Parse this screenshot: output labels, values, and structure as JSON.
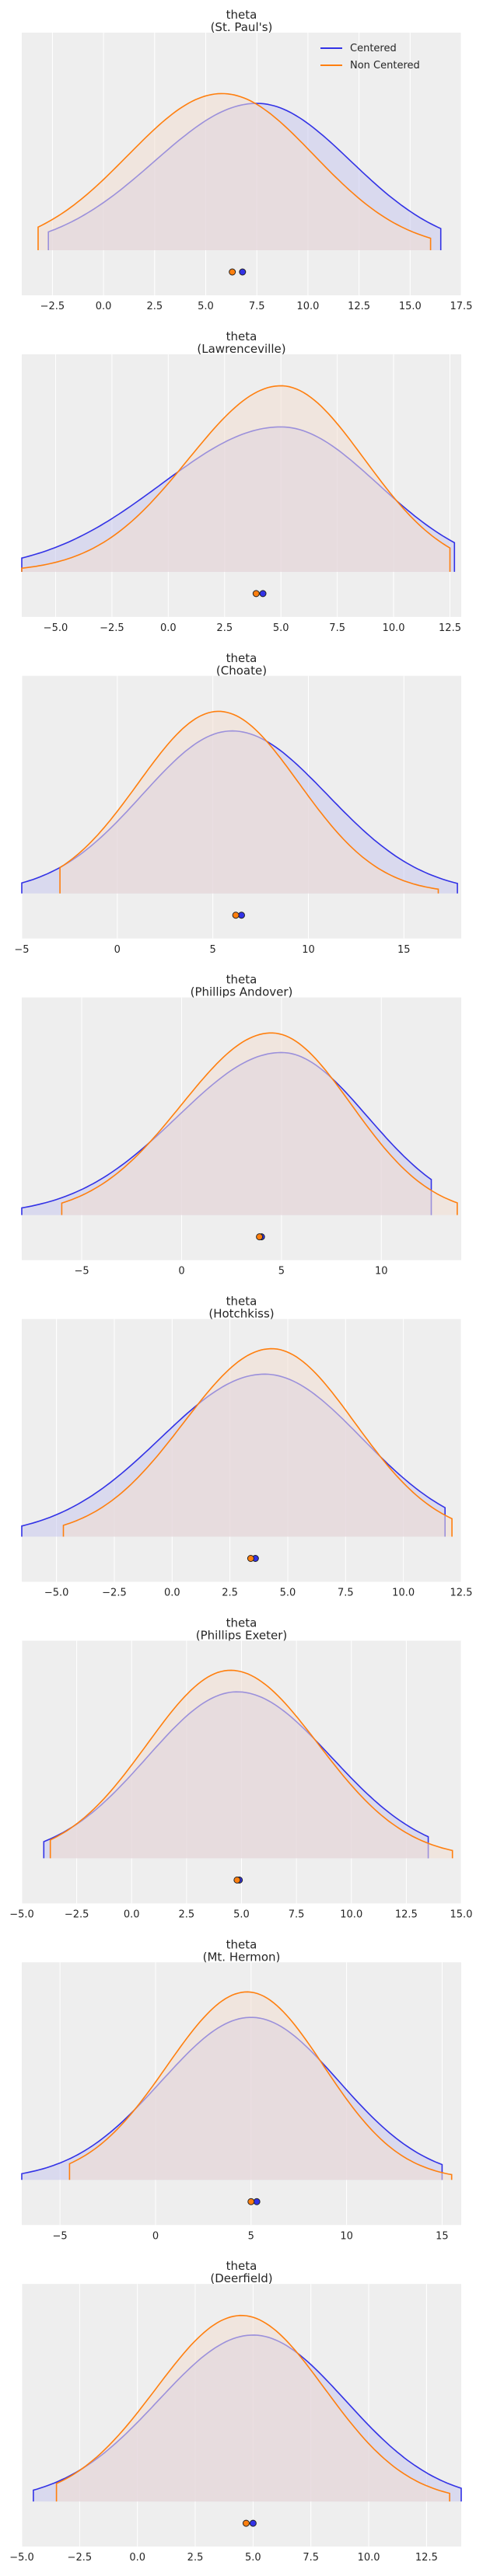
{
  "colors": {
    "centered": "#3232e6",
    "non_centered": "#ff7f0e",
    "panel_bg": "#eeeeee",
    "grid": "#ffffff",
    "centered_fill": "#c9c9ee",
    "non_centered_fill": "#f3ded1"
  },
  "chart_data": [
    {
      "type": "area",
      "title": "theta",
      "subtitle": "(St. Paul's)",
      "xlim": [
        -4.0,
        17.5
      ],
      "xticks": [
        -2.5,
        0.0,
        2.5,
        5.0,
        7.5,
        10.0,
        12.5,
        15.0,
        17.5
      ],
      "xtick_labels": [
        "−2.5",
        "0.0",
        "2.5",
        "5.0",
        "7.5",
        "10.0",
        "12.5",
        "15.0",
        "17.5"
      ],
      "grid": true,
      "legend": {
        "position": "top-right",
        "entries": [
          "Centered",
          "Non Centered"
        ]
      },
      "series": [
        {
          "name": "Centered",
          "mean": 6.8,
          "peak_x": 7.5,
          "range": [
            -2.7,
            16.5
          ],
          "sigma_left": 5.0,
          "sigma_right": 4.6,
          "peak": 0.75
        },
        {
          "name": "Non Centered",
          "mean": 6.3,
          "peak_x": 5.8,
          "range": [
            -3.2,
            16.0
          ],
          "sigma_left": 4.6,
          "sigma_right": 4.5,
          "peak": 0.8
        }
      ]
    },
    {
      "type": "area",
      "title": "theta",
      "subtitle": "(Lawrenceville)",
      "xlim": [
        -6.5,
        13.0
      ],
      "xticks": [
        -5.0,
        -2.5,
        0.0,
        2.5,
        5.0,
        7.5,
        10.0,
        12.5
      ],
      "xtick_labels": [
        "−5.0",
        "−2.5",
        "0.0",
        "2.5",
        "5.0",
        "7.5",
        "10.0",
        "12.5"
      ],
      "grid": true,
      "legend": null,
      "series": [
        {
          "name": "Centered",
          "mean": 4.2,
          "peak_x": 5.0,
          "range": [
            -6.5,
            12.7
          ],
          "sigma_left": 5.3,
          "sigma_right": 4.3,
          "peak": 0.74
        },
        {
          "name": "Non Centered",
          "mean": 3.9,
          "peak_x": 5.0,
          "range": [
            -6.5,
            12.5
          ],
          "sigma_left": 4.1,
          "sigma_right": 3.7,
          "peak": 0.95
        }
      ]
    },
    {
      "type": "area",
      "title": "theta",
      "subtitle": "(Choate)",
      "xlim": [
        -5.0,
        18.0
      ],
      "xticks": [
        -5,
        0,
        5,
        10,
        15
      ],
      "xtick_labels": [
        "−5",
        "0",
        "5",
        "10",
        "15"
      ],
      "grid": true,
      "legend": null,
      "series": [
        {
          "name": "Centered",
          "mean": 6.5,
          "peak_x": 6.0,
          "range": [
            -5.0,
            17.8
          ],
          "sigma_left": 4.7,
          "sigma_right": 5.0,
          "peak": 0.83
        },
        {
          "name": "Non Centered",
          "mean": 6.2,
          "peak_x": 5.3,
          "range": [
            -3.0,
            16.8
          ],
          "sigma_left": 4.2,
          "sigma_right": 4.2,
          "peak": 0.93
        }
      ]
    },
    {
      "type": "area",
      "title": "theta",
      "subtitle": "(Phillips Andover)",
      "xlim": [
        -8.0,
        14.0
      ],
      "xticks": [
        -5,
        0,
        5,
        10
      ],
      "xtick_labels": [
        "−5",
        "0",
        "5",
        "10"
      ],
      "grid": true,
      "legend": null,
      "series": [
        {
          "name": "Centered",
          "mean": 4.0,
          "peak_x": 5.0,
          "range": [
            -8.0,
            12.5
          ],
          "sigma_left": 5.2,
          "sigma_right": 4.3,
          "peak": 0.83
        },
        {
          "name": "Non Centered",
          "mean": 3.9,
          "peak_x": 4.5,
          "range": [
            -6.0,
            13.8
          ],
          "sigma_left": 4.5,
          "sigma_right": 4.0,
          "peak": 0.93
        }
      ]
    },
    {
      "type": "area",
      "title": "theta",
      "subtitle": "(Hotchkiss)",
      "xlim": [
        -6.5,
        12.5
      ],
      "xticks": [
        -5.0,
        -2.5,
        0.0,
        2.5,
        5.0,
        7.5,
        10.0,
        12.5
      ],
      "xtick_labels": [
        "−5.0",
        "−2.5",
        "0.0",
        "2.5",
        "5.0",
        "7.5",
        "10.0",
        "12.5"
      ],
      "grid": true,
      "legend": null,
      "series": [
        {
          "name": "Centered",
          "mean": 3.6,
          "peak_x": 4.0,
          "range": [
            -6.5,
            11.8
          ],
          "sigma_left": 4.5,
          "sigma_right": 4.2,
          "peak": 0.83
        },
        {
          "name": "Non Centered",
          "mean": 3.4,
          "peak_x": 4.3,
          "range": [
            -4.7,
            12.1
          ],
          "sigma_left": 3.8,
          "sigma_right": 3.6,
          "peak": 0.96
        }
      ]
    },
    {
      "type": "area",
      "title": "theta",
      "subtitle": "(Phillips Exeter)",
      "xlim": [
        -5.0,
        15.0
      ],
      "xticks": [
        -5.0,
        -2.5,
        0.0,
        2.5,
        5.0,
        7.5,
        10.0,
        12.5,
        15.0
      ],
      "xtick_labels": [
        "−5.0",
        "−2.5",
        "0.0",
        "2.5",
        "5.0",
        "7.5",
        "10.0",
        "12.5",
        "15.0"
      ],
      "grid": true,
      "legend": null,
      "series": [
        {
          "name": "Centered",
          "mean": 4.9,
          "peak_x": 4.8,
          "range": [
            -4.0,
            13.5
          ],
          "sigma_left": 4.1,
          "sigma_right": 4.3,
          "peak": 0.85
        },
        {
          "name": "Non Centered",
          "mean": 4.8,
          "peak_x": 4.5,
          "range": [
            -3.7,
            14.6
          ],
          "sigma_left": 3.8,
          "sigma_right": 4.0,
          "peak": 0.96
        }
      ]
    },
    {
      "type": "area",
      "title": "theta",
      "subtitle": "(Mt. Hermon)",
      "xlim": [
        -7.0,
        16.0
      ],
      "xticks": [
        -5,
        0,
        5,
        10,
        15
      ],
      "xtick_labels": [
        "−5",
        "0",
        "5",
        "10",
        "15"
      ],
      "grid": true,
      "legend": null,
      "series": [
        {
          "name": "Centered",
          "mean": 5.3,
          "peak_x": 5.0,
          "range": [
            -7.0,
            15.0
          ],
          "sigma_left": 4.7,
          "sigma_right": 4.6,
          "peak": 0.83
        },
        {
          "name": "Non Centered",
          "mean": 5.0,
          "peak_x": 4.8,
          "range": [
            -4.5,
            15.5
          ],
          "sigma_left": 4.2,
          "sigma_right": 4.0,
          "peak": 0.96
        }
      ]
    },
    {
      "type": "area",
      "title": "theta",
      "subtitle": "(Deerfield)",
      "xlim": [
        -5.0,
        14.0
      ],
      "xticks": [
        -5.0,
        -2.5,
        0.0,
        2.5,
        5.0,
        7.5,
        10.0,
        12.5
      ],
      "xtick_labels": [
        "−5.0",
        "−2.5",
        "0.0",
        "2.5",
        "5.0",
        "7.5",
        "10.0",
        "12.5"
      ],
      "grid": true,
      "legend": null,
      "series": [
        {
          "name": "Centered",
          "mean": 5.0,
          "peak_x": 5.0,
          "range": [
            -4.5,
            14.0
          ],
          "sigma_left": 4.1,
          "sigma_right": 4.0,
          "peak": 0.85
        },
        {
          "name": "Non Centered",
          "mean": 4.7,
          "peak_x": 4.5,
          "range": [
            -3.5,
            13.5
          ],
          "sigma_left": 3.7,
          "sigma_right": 3.6,
          "peak": 0.95
        }
      ]
    }
  ]
}
